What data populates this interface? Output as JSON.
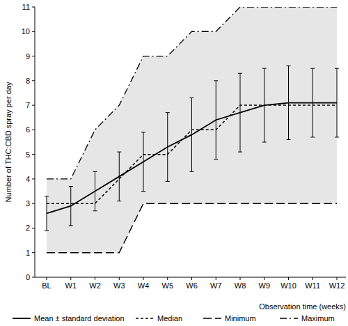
{
  "chart_data": {
    "type": "line",
    "x_label": "Observation time (weeks)",
    "y_label": "Number of THC:CBD spray per day",
    "categories": [
      "BL",
      "W1",
      "W2",
      "W3",
      "W4",
      "W5",
      "W6",
      "W7",
      "W8",
      "W9",
      "W10",
      "W11",
      "W12"
    ],
    "series": [
      {
        "name": "Mean ± standard deviation",
        "color": "#000000",
        "line_style": "solid",
        "values": [
          2.6,
          2.9,
          3.5,
          4.1,
          4.7,
          5.3,
          5.8,
          6.4,
          6.7,
          7.0,
          7.1,
          7.1,
          7.1
        ],
        "errors": [
          0.7,
          0.8,
          0.8,
          1.0,
          1.2,
          1.4,
          1.5,
          1.6,
          1.6,
          1.5,
          1.5,
          1.4,
          1.4
        ]
      },
      {
        "name": "Median",
        "color": "#000000",
        "line_style": "dashed",
        "values": [
          3,
          3,
          3,
          4,
          5,
          5,
          6,
          6,
          7,
          7,
          7,
          7,
          7
        ]
      },
      {
        "name": "Minimum",
        "color": "#000000",
        "line_style": "longdash",
        "values": [
          1,
          1,
          1,
          1,
          3,
          3,
          3,
          3,
          3,
          3,
          3,
          3,
          3
        ]
      },
      {
        "name": "Maximum",
        "color": "#000000",
        "line_style": "dashdot",
        "values": [
          4,
          4,
          6,
          7,
          9,
          9,
          10,
          10,
          11,
          11,
          11,
          11,
          11
        ]
      }
    ],
    "ylim": [
      0,
      11
    ],
    "yticks": [
      0,
      1,
      2,
      3,
      4,
      5,
      6,
      7,
      8,
      9,
      10,
      11
    ],
    "legend": "bottom",
    "grid": false
  }
}
